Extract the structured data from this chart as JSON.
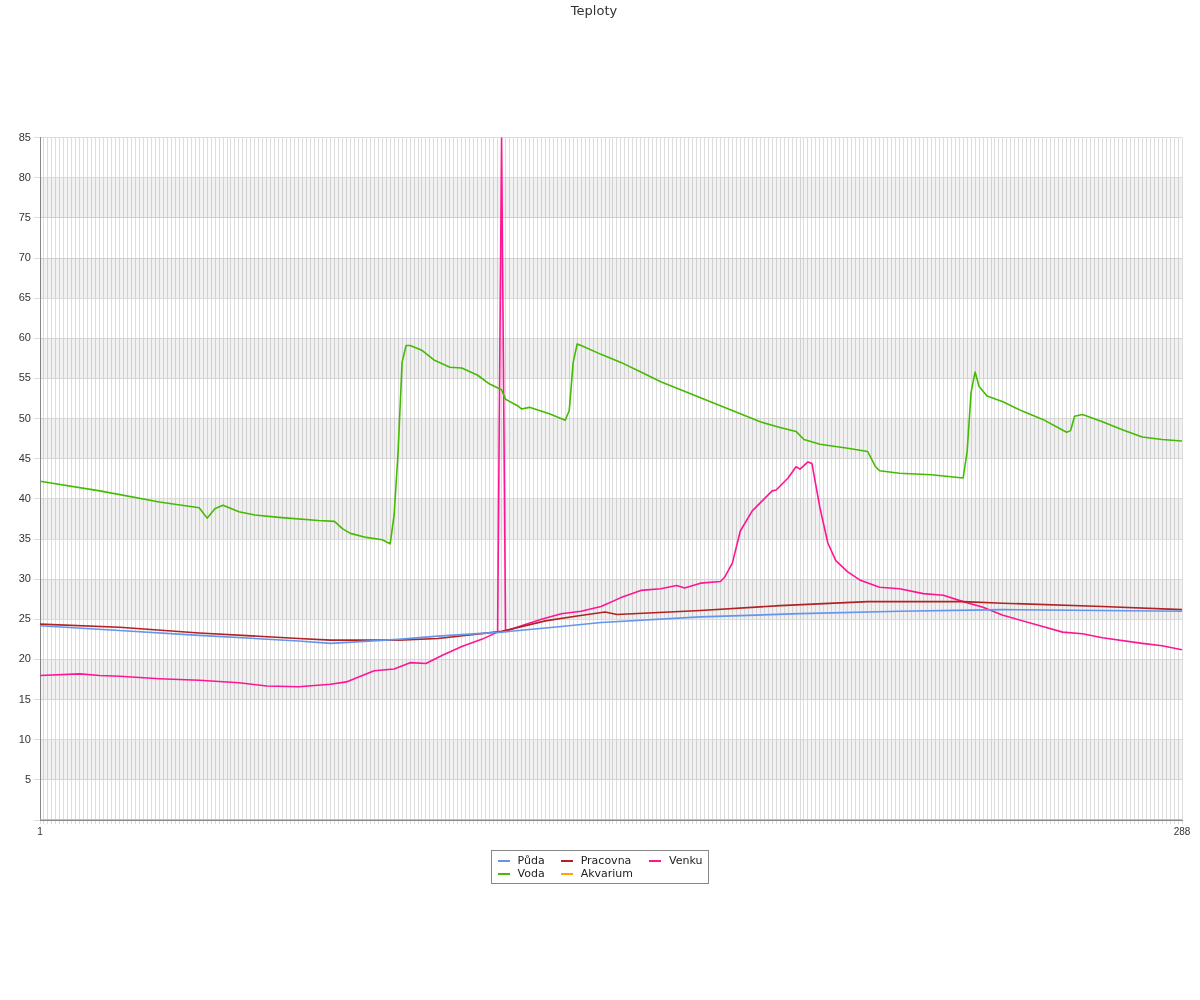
{
  "chart_data": {
    "type": "line",
    "title": "Teploty",
    "legend": "bottom",
    "grid": true,
    "marker": "none",
    "line_style": "solid",
    "xlim": [
      1,
      288
    ],
    "xticks": [
      1,
      {
        "value": 2,
        "label": null
      },
      {
        "value": 3,
        "label": null
      },
      {
        "value": 4,
        "label": null
      },
      {
        "value": 5,
        "label": null
      },
      {
        "value": 6,
        "label": null
      },
      {
        "value": 7,
        "label": null
      },
      {
        "value": 8,
        "label": null
      },
      {
        "value": 9,
        "label": null
      },
      {
        "value": 10,
        "label": null
      },
      {
        "value": 11,
        "label": null
      },
      {
        "value": 12,
        "label": null
      },
      {
        "value": 13,
        "label": null
      },
      {
        "value": 14,
        "label": null
      },
      {
        "value": 15,
        "label": null
      },
      {
        "value": 16,
        "label": null
      },
      {
        "value": 17,
        "label": null
      },
      {
        "value": 18,
        "label": null
      },
      {
        "value": 19,
        "label": null
      },
      {
        "value": 20,
        "label": null
      },
      {
        "value": 21,
        "label": null
      },
      {
        "value": 22,
        "label": null
      },
      {
        "value": 23,
        "label": null
      },
      {
        "value": 24,
        "label": null
      },
      {
        "value": 25,
        "label": null
      },
      {
        "value": 26,
        "label": null
      },
      {
        "value": 27,
        "label": null
      },
      {
        "value": 28,
        "label": null
      },
      {
        "value": 29,
        "label": null
      },
      {
        "value": 30,
        "label": null
      },
      {
        "value": 31,
        "label": null
      },
      {
        "value": 32,
        "label": null
      },
      {
        "value": 33,
        "label": null
      },
      {
        "value": 34,
        "label": null
      },
      {
        "value": 35,
        "label": null
      },
      {
        "value": 36,
        "label": null
      },
      {
        "value": 37,
        "label": null
      },
      {
        "value": 38,
        "label": null
      },
      {
        "value": 39,
        "label": null
      },
      {
        "value": 40,
        "label": null
      },
      {
        "value": 41,
        "label": null
      },
      {
        "value": 42,
        "label": null
      },
      {
        "value": 43,
        "label": null
      },
      {
        "value": 44,
        "label": null
      },
      {
        "value": 45,
        "label": null
      },
      {
        "value": 46,
        "label": null
      },
      {
        "value": 47,
        "label": null
      },
      {
        "value": 48,
        "label": null
      },
      {
        "value": 49,
        "label": null
      },
      {
        "value": 50,
        "label": null
      },
      {
        "value": 51,
        "label": null
      },
      {
        "value": 52,
        "label": null
      },
      {
        "value": 53,
        "label": null
      },
      {
        "value": 54,
        "label": null
      },
      {
        "value": 55,
        "label": null
      },
      {
        "value": 56,
        "label": null
      },
      {
        "value": 57,
        "label": null
      },
      {
        "value": 58,
        "label": null
      },
      {
        "value": 59,
        "label": null
      },
      {
        "value": 60,
        "label": null
      },
      {
        "value": 61,
        "label": null
      },
      {
        "value": 62,
        "label": null
      },
      {
        "value": 63,
        "label": null
      },
      {
        "value": 64,
        "label": null
      },
      {
        "value": 65,
        "label": null
      },
      {
        "value": 66,
        "label": null
      },
      {
        "value": 67,
        "label": null
      },
      {
        "value": 68,
        "label": null
      },
      {
        "value": 69,
        "label": null
      },
      {
        "value": 70,
        "label": null
      },
      {
        "value": 71,
        "label": null
      },
      {
        "value": 72,
        "label": null
      },
      {
        "value": 73,
        "label": null
      },
      {
        "value": 74,
        "label": null
      },
      {
        "value": 75,
        "label": null
      },
      {
        "value": 76,
        "label": null
      },
      {
        "value": 77,
        "label": null
      },
      {
        "value": 78,
        "label": null
      },
      {
        "value": 79,
        "label": null
      },
      {
        "value": 80,
        "label": null
      },
      {
        "value": 81,
        "label": null
      },
      {
        "value": 82,
        "label": null
      },
      {
        "value": 83,
        "label": null
      },
      {
        "value": 84,
        "label": null
      },
      {
        "value": 85,
        "label": null
      },
      {
        "value": 86,
        "label": null
      },
      {
        "value": 87,
        "label": null
      },
      {
        "value": 88,
        "label": null
      },
      {
        "value": 89,
        "label": null
      },
      {
        "value": 90,
        "label": null
      },
      {
        "value": 91,
        "label": null
      },
      {
        "value": 92,
        "label": null
      },
      {
        "value": 93,
        "label": null
      },
      {
        "value": 94,
        "label": null
      },
      {
        "value": 95,
        "label": null
      },
      {
        "value": 96,
        "label": null
      },
      {
        "value": 97,
        "label": null
      },
      {
        "value": 98,
        "label": null
      },
      {
        "value": 99,
        "label": null
      },
      {
        "value": 100,
        "label": null
      },
      {
        "value": 101,
        "label": null
      },
      {
        "value": 102,
        "label": null
      },
      {
        "value": 103,
        "label": null
      },
      {
        "value": 104,
        "label": null
      },
      {
        "value": 105,
        "label": null
      },
      {
        "value": 106,
        "label": null
      },
      {
        "value": 107,
        "label": null
      },
      {
        "value": 108,
        "label": null
      },
      {
        "value": 109,
        "label": null
      },
      {
        "value": 110,
        "label": null
      },
      {
        "value": 111,
        "label": null
      },
      {
        "value": 112,
        "label": null
      },
      {
        "value": 113,
        "label": null
      },
      {
        "value": 114,
        "label": null
      },
      {
        "value": 115,
        "label": null
      },
      {
        "value": 116,
        "label": null
      },
      {
        "value": 117,
        "label": null
      },
      {
        "value": 118,
        "label": null
      },
      {
        "value": 119,
        "label": null
      },
      {
        "value": 120,
        "label": null
      },
      {
        "value": 121,
        "label": null
      },
      {
        "value": 122,
        "label": null
      },
      {
        "value": 123,
        "label": null
      },
      {
        "value": 124,
        "label": null
      },
      {
        "value": 125,
        "label": null
      },
      {
        "value": 126,
        "label": null
      },
      {
        "value": 127,
        "label": null
      },
      {
        "value": 128,
        "label": null
      },
      {
        "value": 129,
        "label": null
      },
      {
        "value": 130,
        "label": null
      },
      {
        "value": 131,
        "label": null
      },
      {
        "value": 132,
        "label": null
      },
      {
        "value": 133,
        "label": null
      },
      {
        "value": 134,
        "label": null
      },
      {
        "value": 135,
        "label": null
      },
      {
        "value": 136,
        "label": null
      },
      {
        "value": 137,
        "label": null
      },
      {
        "value": 138,
        "label": null
      },
      {
        "value": 139,
        "label": null
      },
      {
        "value": 140,
        "label": null
      },
      {
        "value": 141,
        "label": null
      },
      {
        "value": 142,
        "label": null
      },
      {
        "value": 143,
        "label": null
      },
      {
        "value": 144,
        "label": null
      },
      {
        "value": 145,
        "label": null
      },
      {
        "value": 146,
        "label": null
      },
      {
        "value": 147,
        "label": null
      },
      {
        "value": 148,
        "label": null
      },
      {
        "value": 149,
        "label": null
      },
      {
        "value": 150,
        "label": null
      },
      {
        "value": 151,
        "label": null
      },
      {
        "value": 152,
        "label": null
      },
      {
        "value": 153,
        "label": null
      },
      {
        "value": 154,
        "label": null
      },
      {
        "value": 155,
        "label": null
      },
      {
        "value": 156,
        "label": null
      },
      {
        "value": 157,
        "label": null
      },
      {
        "value": 158,
        "label": null
      },
      {
        "value": 159,
        "label": null
      },
      {
        "value": 160,
        "label": null
      },
      {
        "value": 161,
        "label": null
      },
      {
        "value": 162,
        "label": null
      },
      {
        "value": 163,
        "label": null
      },
      {
        "value": 164,
        "label": null
      },
      {
        "value": 165,
        "label": null
      },
      {
        "value": 166,
        "label": null
      },
      {
        "value": 167,
        "label": null
      },
      {
        "value": 168,
        "label": null
      },
      {
        "value": 169,
        "label": null
      },
      {
        "value": 170,
        "label": null
      },
      {
        "value": 171,
        "label": null
      },
      {
        "value": 172,
        "label": null
      },
      {
        "value": 173,
        "label": null
      },
      {
        "value": 174,
        "label": null
      },
      {
        "value": 175,
        "label": null
      },
      {
        "value": 176,
        "label": null
      },
      {
        "value": 177,
        "label": null
      },
      {
        "value": 178,
        "label": null
      },
      {
        "value": 179,
        "label": null
      },
      {
        "value": 180,
        "label": null
      },
      {
        "value": 181,
        "label": null
      },
      {
        "value": 182,
        "label": null
      },
      {
        "value": 183,
        "label": null
      },
      {
        "value": 184,
        "label": null
      },
      {
        "value": 185,
        "label": null
      },
      {
        "value": 186,
        "label": null
      },
      {
        "value": 187,
        "label": null
      },
      {
        "value": 188,
        "label": null
      },
      {
        "value": 189,
        "label": null
      },
      {
        "value": 190,
        "label": null
      },
      {
        "value": 191,
        "label": null
      },
      {
        "value": 192,
        "label": null
      },
      {
        "value": 193,
        "label": null
      },
      {
        "value": 194,
        "label": null
      },
      {
        "value": 195,
        "label": null
      },
      {
        "value": 196,
        "label": null
      },
      {
        "value": 197,
        "label": null
      },
      {
        "value": 198,
        "label": null
      },
      {
        "value": 199,
        "label": null
      },
      {
        "value": 200,
        "label": null
      },
      {
        "value": 201,
        "label": null
      },
      {
        "value": 202,
        "label": null
      },
      {
        "value": 203,
        "label": null
      },
      {
        "value": 204,
        "label": null
      },
      {
        "value": 205,
        "label": null
      },
      {
        "value": 206,
        "label": null
      },
      {
        "value": 207,
        "label": null
      },
      {
        "value": 208,
        "label": null
      },
      {
        "value": 209,
        "label": null
      },
      {
        "value": 210,
        "label": null
      },
      {
        "value": 211,
        "label": null
      },
      {
        "value": 212,
        "label": null
      },
      {
        "value": 213,
        "label": null
      },
      {
        "value": 214,
        "label": null
      },
      {
        "value": 215,
        "label": null
      },
      {
        "value": 216,
        "label": null
      },
      {
        "value": 217,
        "label": null
      },
      {
        "value": 218,
        "label": null
      },
      {
        "value": 219,
        "label": null
      },
      {
        "value": 220,
        "label": null
      },
      {
        "value": 221,
        "label": null
      },
      {
        "value": 222,
        "label": null
      },
      {
        "value": 223,
        "label": null
      },
      {
        "value": 224,
        "label": null
      },
      {
        "value": 225,
        "label": null
      },
      {
        "value": 226,
        "label": null
      },
      {
        "value": 227,
        "label": null
      },
      {
        "value": 228,
        "label": null
      },
      {
        "value": 229,
        "label": null
      },
      {
        "value": 230,
        "label": null
      },
      {
        "value": 231,
        "label": null
      },
      {
        "value": 232,
        "label": null
      },
      {
        "value": 233,
        "label": null
      },
      {
        "value": 234,
        "label": null
      },
      {
        "value": 235,
        "label": null
      },
      {
        "value": 236,
        "label": null
      },
      {
        "value": 237,
        "label": null
      },
      {
        "value": 238,
        "label": null
      },
      {
        "value": 239,
        "label": null
      },
      {
        "value": 240,
        "label": null
      },
      {
        "value": 241,
        "label": null
      },
      {
        "value": 242,
        "label": null
      },
      {
        "value": 243,
        "label": null
      },
      {
        "value": 244,
        "label": null
      },
      {
        "value": 245,
        "label": null
      },
      {
        "value": 246,
        "label": null
      },
      {
        "value": 247,
        "label": null
      },
      {
        "value": 248,
        "label": null
      },
      {
        "value": 249,
        "label": null
      },
      {
        "value": 250,
        "label": null
      },
      {
        "value": 251,
        "label": null
      },
      {
        "value": 252,
        "label": null
      },
      {
        "value": 253,
        "label": null
      },
      {
        "value": 254,
        "label": null
      },
      {
        "value": 255,
        "label": null
      },
      {
        "value": 256,
        "label": null
      },
      {
        "value": 257,
        "label": null
      },
      {
        "value": 258,
        "label": null
      },
      {
        "value": 259,
        "label": null
      },
      {
        "value": 260,
        "label": null
      },
      {
        "value": 261,
        "label": null
      },
      {
        "value": 262,
        "label": null
      },
      {
        "value": 263,
        "label": null
      },
      {
        "value": 264,
        "label": null
      },
      {
        "value": 265,
        "label": null
      },
      {
        "value": 266,
        "label": null
      },
      {
        "value": 267,
        "label": null
      },
      {
        "value": 268,
        "label": null
      },
      {
        "value": 269,
        "label": null
      },
      {
        "value": 270,
        "label": null
      },
      {
        "value": 271,
        "label": null
      },
      {
        "value": 272,
        "label": null
      },
      {
        "value": 273,
        "label": null
      },
      {
        "value": 274,
        "label": null
      },
      {
        "value": 275,
        "label": null
      },
      {
        "value": 276,
        "label": null
      },
      {
        "value": 277,
        "label": null
      },
      {
        "value": 278,
        "label": null
      },
      {
        "value": 279,
        "label": null
      },
      {
        "value": 280,
        "label": null
      },
      {
        "value": 281,
        "label": null
      },
      {
        "value": 282,
        "label": null
      },
      {
        "value": 283,
        "label": null
      },
      {
        "value": 284,
        "label": null
      },
      {
        "value": 285,
        "label": null
      },
      {
        "value": 286,
        "label": null
      },
      {
        "value": 287,
        "label": null
      },
      288
    ],
    "ylim": [
      0,
      85
    ],
    "yticks": [
      {
        "value": 0,
        "label": null
      },
      5,
      10,
      15,
      20,
      25,
      30,
      35,
      40,
      45,
      50,
      55,
      60,
      65,
      70,
      75,
      80,
      85
    ],
    "series": [
      {
        "name": "Půda",
        "color": "#6495ed",
        "x": [
          1,
          21,
          41,
          66,
          74,
          91,
          101,
          117,
          132,
          142,
          167,
          192,
          217,
          243,
          268,
          288
        ],
        "values": [
          24.2,
          23.6,
          23.0,
          22.3,
          22.0,
          22.5,
          22.9,
          23.4,
          24.1,
          24.6,
          25.3,
          25.7,
          26.0,
          26.2,
          26.1,
          26.0
        ]
      },
      {
        "name": "Voda",
        "color": "#44bb00",
        "x": [
          1,
          16,
          31,
          41,
          43,
          45,
          47,
          51,
          55,
          61,
          71,
          75,
          77,
          79,
          83,
          87,
          89,
          90,
          91,
          92,
          93,
          94,
          97,
          100,
          104,
          107,
          111,
          114,
          117,
          118,
          121,
          122,
          124,
          129,
          133,
          134,
          135,
          136,
          137,
          142,
          147,
          152,
          157,
          162,
          167,
          172,
          177,
          182,
          187,
          191,
          193,
          197,
          204,
          209,
          211,
          212,
          217,
          225,
          233,
          234,
          235,
          236,
          237,
          239,
          243,
          248,
          253,
          259,
          260,
          261,
          263,
          268,
          273,
          278,
          283,
          288
        ],
        "values": [
          42.2,
          41.0,
          39.6,
          38.9,
          37.6,
          38.8,
          39.2,
          38.4,
          38.0,
          37.7,
          37.3,
          37.2,
          36.3,
          35.7,
          35.2,
          34.9,
          34.4,
          38.0,
          45.9,
          57.0,
          59.1,
          59.1,
          58.5,
          57.3,
          56.4,
          56.3,
          55.4,
          54.3,
          53.6,
          52.4,
          51.6,
          51.2,
          51.4,
          50.6,
          49.8,
          51.0,
          57.0,
          59.3,
          59.1,
          58.0,
          57.0,
          55.8,
          54.6,
          53.6,
          52.6,
          51.6,
          50.6,
          49.6,
          48.9,
          48.4,
          47.4,
          46.8,
          46.3,
          45.9,
          44.0,
          43.5,
          43.2,
          43.0,
          42.6,
          45.9,
          53.3,
          55.8,
          54.0,
          52.8,
          52.1,
          50.9,
          49.9,
          48.3,
          48.5,
          50.3,
          50.5,
          49.6,
          48.6,
          47.7,
          47.4,
          47.2
        ]
      },
      {
        "name": "Pracovna",
        "color": "#b22222",
        "x": [
          1,
          21,
          41,
          66,
          74,
          91,
          101,
          117,
          128,
          136,
          143,
          146,
          167,
          187,
          209,
          233,
          243,
          268,
          288
        ],
        "values": [
          24.4,
          24.0,
          23.3,
          22.6,
          22.4,
          22.4,
          22.6,
          23.5,
          24.8,
          25.4,
          25.9,
          25.6,
          26.1,
          26.7,
          27.2,
          27.2,
          27.0,
          26.6,
          26.2
        ]
      },
      {
        "name": "Akvarium",
        "color": "#ffa500",
        "x": [
          1,
          288
        ],
        "values": [
          0,
          0
        ]
      },
      {
        "name": "Venku",
        "color": "#ff1493",
        "x": [
          1,
          11,
          16,
          21,
          31,
          41,
          51,
          58,
          66,
          74,
          78,
          82,
          85,
          90,
          94,
          98,
          102,
          107,
          112,
          116,
          117,
          118,
          122,
          127,
          132,
          137,
          142,
          147,
          152,
          157,
          161,
          163,
          167,
          172,
          173,
          175,
          177,
          180,
          182,
          185,
          186,
          189,
          191,
          192,
          194,
          195,
          197,
          199,
          201,
          204,
          207,
          212,
          217,
          223,
          228,
          233,
          238,
          243,
          253,
          258,
          263,
          268,
          278,
          283,
          288
        ],
        "values": [
          18.0,
          18.2,
          18.0,
          17.9,
          17.6,
          17.4,
          17.1,
          16.7,
          16.6,
          16.9,
          17.2,
          18.0,
          18.6,
          18.8,
          19.6,
          19.5,
          20.5,
          21.6,
          22.5,
          23.4,
          85,
          23.5,
          24.2,
          25.0,
          25.7,
          26.0,
          26.6,
          27.7,
          28.6,
          28.8,
          29.2,
          28.9,
          29.5,
          29.7,
          30.2,
          32.0,
          36.0,
          38.5,
          39.5,
          41.0,
          41.1,
          42.6,
          44.0,
          43.7,
          44.6,
          44.4,
          38.9,
          34.5,
          32.3,
          30.9,
          29.9,
          29.0,
          28.8,
          28.2,
          28.0,
          27.2,
          26.5,
          25.5,
          24.1,
          23.4,
          23.2,
          22.7,
          22.0,
          21.7,
          21.2
        ]
      }
    ]
  }
}
